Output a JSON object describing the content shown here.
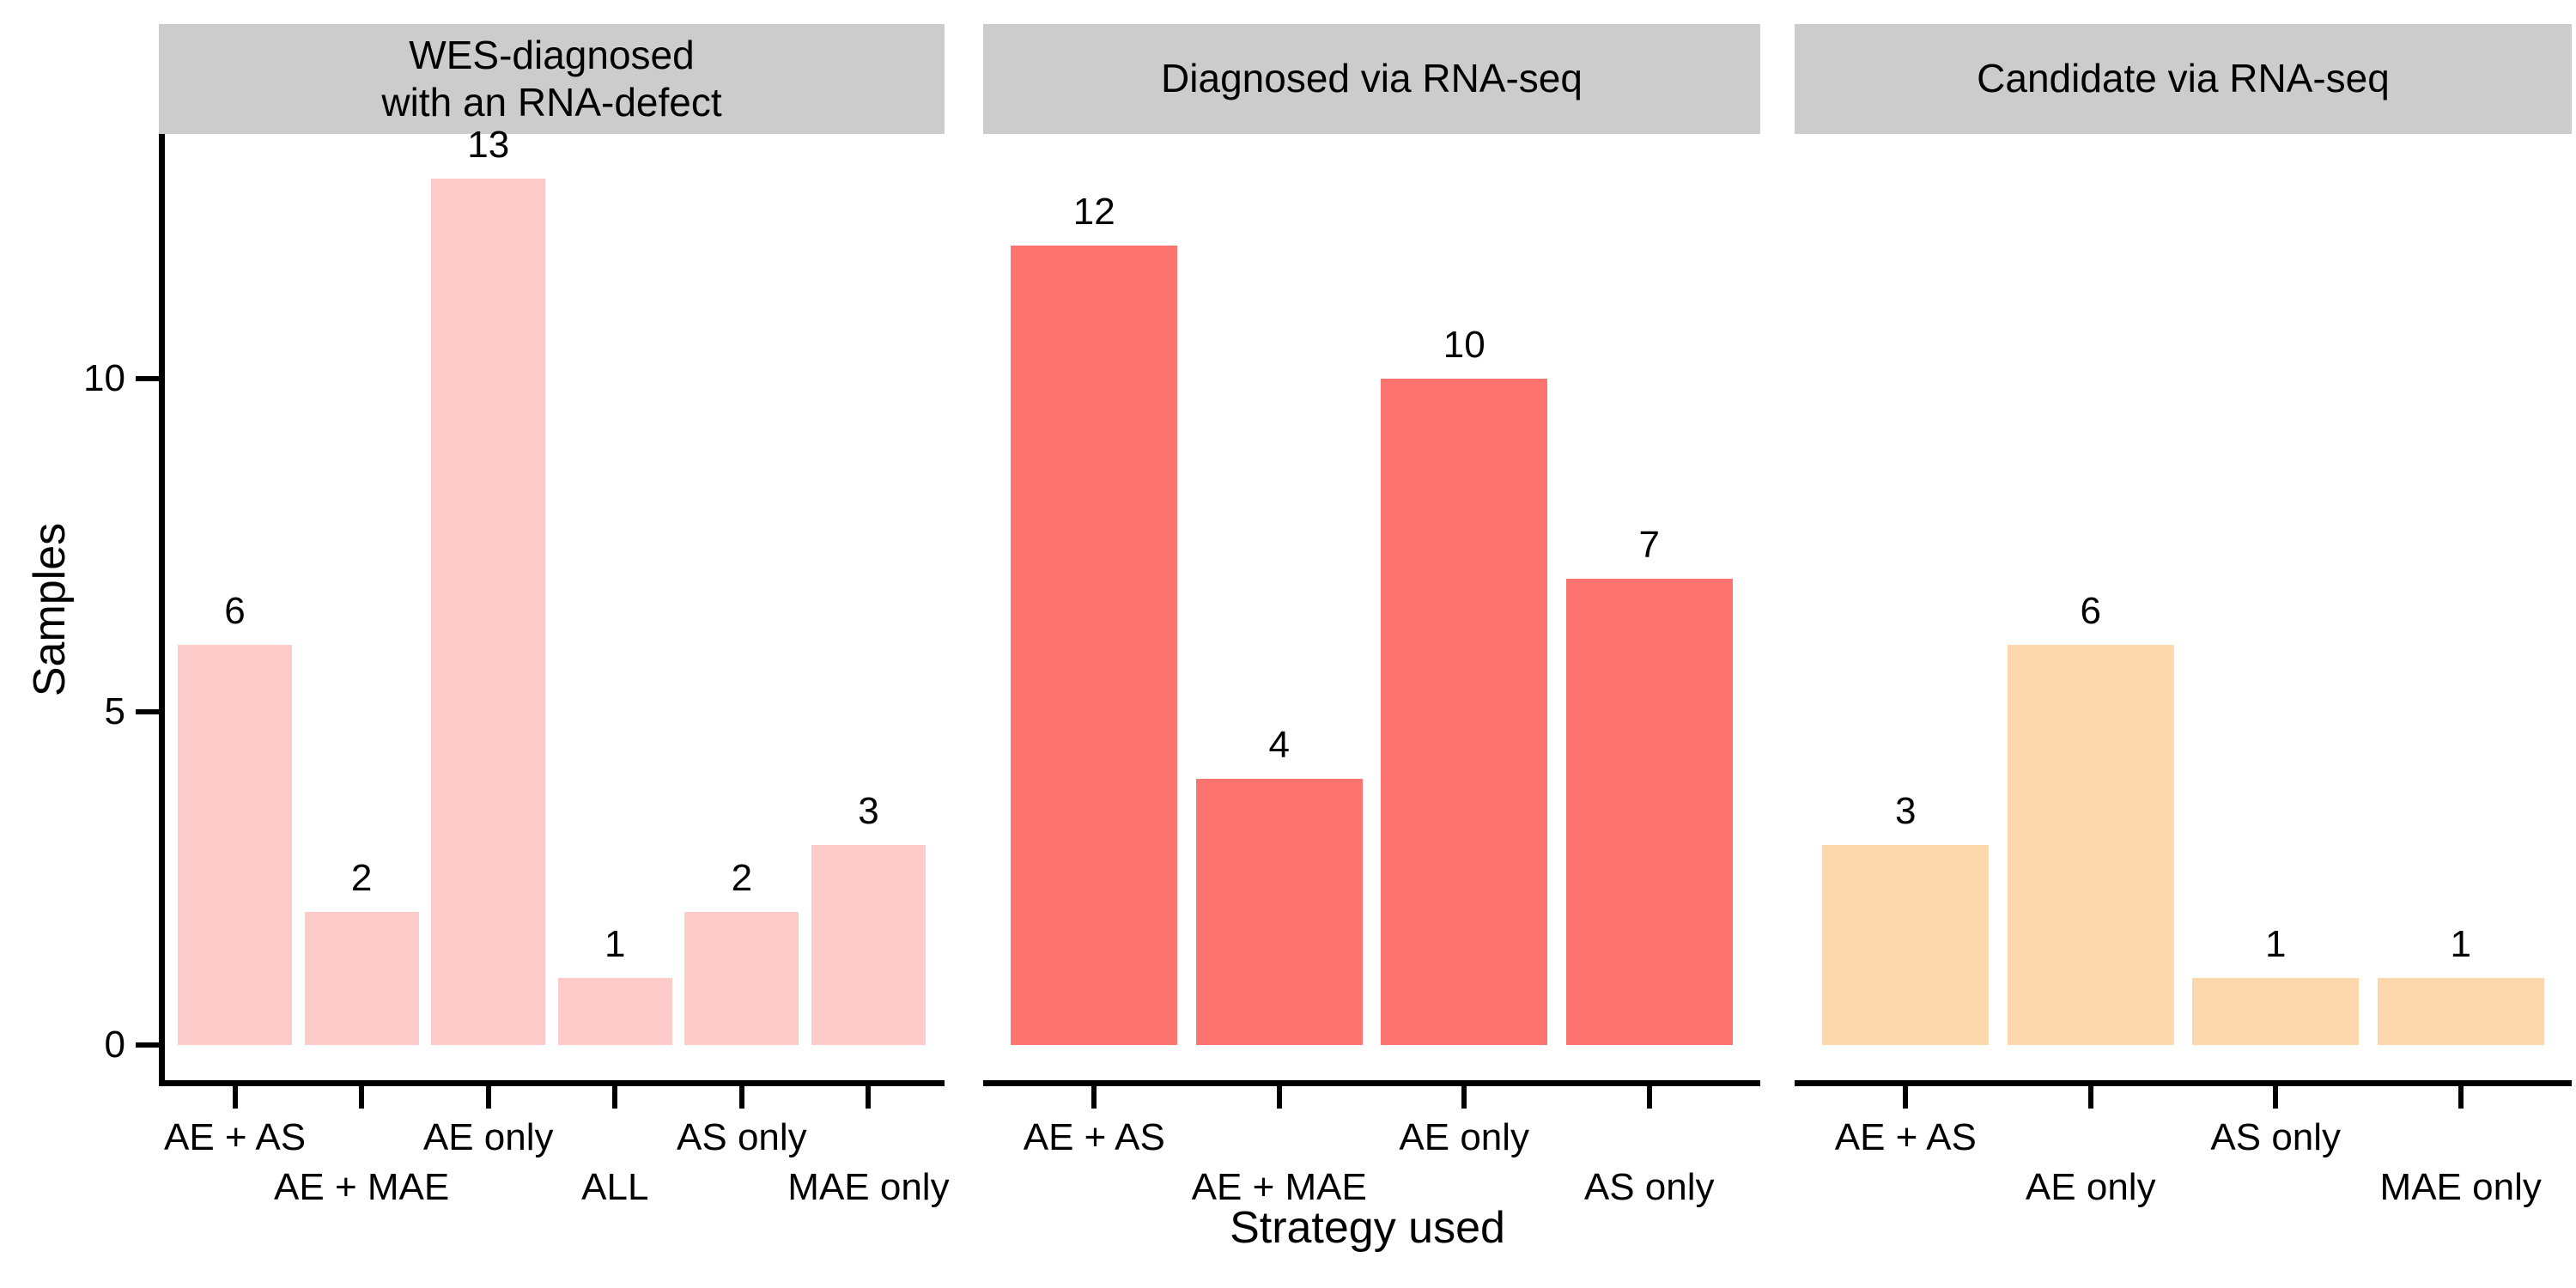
{
  "figure": {
    "background": "#FFFFFF",
    "strip_background": "#CCCCCC",
    "axis_color": "#000000"
  },
  "chart_data": {
    "type": "bar",
    "title": "",
    "xlabel": "Strategy used",
    "ylabel": "Samples",
    "y_ticks": [
      0,
      5,
      10
    ],
    "ylim": [
      0,
      13.7
    ],
    "grid": false,
    "legend": "none",
    "facets": 3,
    "panels": [
      {
        "title": "WES-diagnosed\nwith an RNA-defect",
        "bar_color": "#FDCBC9",
        "categories": [
          "AE + AS",
          "AE + MAE",
          "AE only",
          "ALL",
          "AS only",
          "MAE only"
        ],
        "values": [
          6,
          2,
          13,
          1,
          2,
          3
        ]
      },
      {
        "title": "Diagnosed via RNA-seq",
        "bar_color": "#FD7370",
        "categories": [
          "AE + AS",
          "AE + MAE",
          "AE only",
          "AS only"
        ],
        "values": [
          12,
          4,
          10,
          7
        ]
      },
      {
        "title": "Candidate via RNA-seq",
        "bar_color": "#FED8AD",
        "categories": [
          "AE + AS",
          "AE only",
          "AS only",
          "MAE only"
        ],
        "values": [
          3,
          6,
          1,
          1
        ]
      }
    ]
  }
}
